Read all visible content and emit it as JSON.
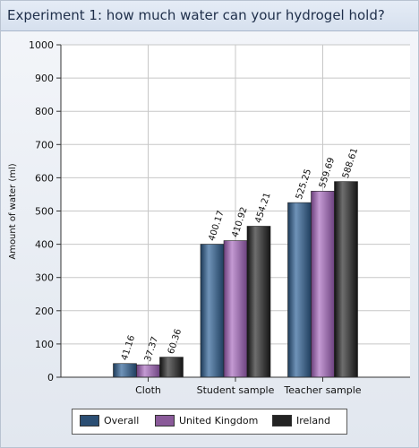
{
  "chart_data": {
    "type": "bar",
    "title": "Experiment 1: how much water can your hydrogel hold?",
    "ylabel": "Amount of water (ml)",
    "xlabel": "",
    "ylim": [
      0,
      1000
    ],
    "yticks": [
      0,
      100,
      200,
      300,
      400,
      500,
      600,
      700,
      800,
      900,
      1000
    ],
    "categories": [
      "Cloth",
      "Student sample",
      "Teacher sample"
    ],
    "series": [
      {
        "name": "Overall",
        "color": "#2b4e73",
        "values": [
          41.16,
          400.17,
          525.25
        ],
        "labels": [
          "41.16",
          "400.17",
          "525.25"
        ]
      },
      {
        "name": "United Kingdom",
        "color": "#8a5a99",
        "values": [
          37.37,
          410.92,
          559.69
        ],
        "labels": [
          "37.37",
          "410.92",
          "559.69"
        ]
      },
      {
        "name": "Ireland",
        "color": "#232323",
        "values": [
          60.36,
          454.21,
          588.61
        ],
        "labels": [
          "60.36",
          "454.21",
          "588.61"
        ]
      }
    ],
    "grid": true,
    "legend_position": "bottom"
  }
}
